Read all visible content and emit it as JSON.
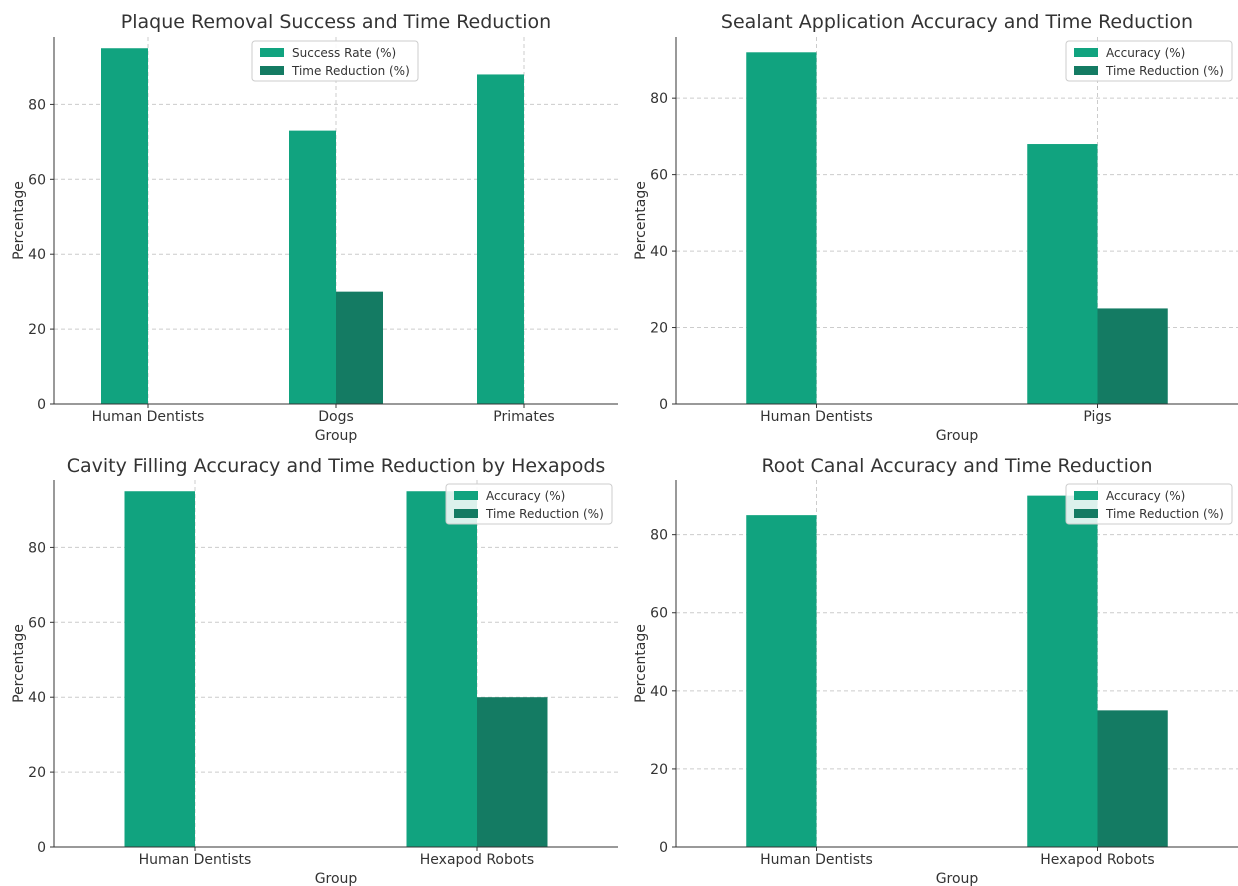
{
  "chart_data": [
    {
      "type": "bar",
      "title": "Plaque Removal Success and Time Reduction",
      "xlabel": "Group",
      "ylabel": "Percentage",
      "categories": [
        "Human Dentists",
        "Dogs",
        "Primates"
      ],
      "series": [
        {
          "name": "Success Rate (%)",
          "values": [
            95,
            73,
            88
          ],
          "color": "#11a37f"
        },
        {
          "name": "Time Reduction (%)",
          "values": [
            0,
            30,
            0
          ],
          "color": "#147b63"
        }
      ],
      "ylim": [
        0,
        98
      ],
      "yticks": [
        0,
        20,
        40,
        60,
        80
      ],
      "grid": true,
      "legend": "top-center"
    },
    {
      "type": "bar",
      "title": "Sealant Application Accuracy and Time Reduction",
      "xlabel": "Group",
      "ylabel": "Percentage",
      "categories": [
        "Human Dentists",
        "Pigs"
      ],
      "series": [
        {
          "name": "Accuracy (%)",
          "values": [
            92,
            68
          ],
          "color": "#11a37f"
        },
        {
          "name": "Time Reduction (%)",
          "values": [
            0,
            25
          ],
          "color": "#147b63"
        }
      ],
      "ylim": [
        0,
        96
      ],
      "yticks": [
        0,
        20,
        40,
        60,
        80
      ],
      "grid": true,
      "legend": "top-right"
    },
    {
      "type": "bar",
      "title": "Cavity Filling Accuracy and Time Reduction by Hexapods",
      "xlabel": "Group",
      "ylabel": "Percentage",
      "categories": [
        "Human Dentists",
        "Hexapod Robots"
      ],
      "series": [
        {
          "name": "Accuracy (%)",
          "values": [
            95,
            95
          ],
          "color": "#11a37f"
        },
        {
          "name": "Time Reduction (%)",
          "values": [
            0,
            40
          ],
          "color": "#147b63"
        }
      ],
      "ylim": [
        0,
        98
      ],
      "yticks": [
        0,
        20,
        40,
        60,
        80
      ],
      "grid": true,
      "legend": "top-right"
    },
    {
      "type": "bar",
      "title": "Root Canal Accuracy and Time Reduction",
      "xlabel": "Group",
      "ylabel": "Percentage",
      "categories": [
        "Human Dentists",
        "Hexapod Robots"
      ],
      "series": [
        {
          "name": "Accuracy (%)",
          "values": [
            85,
            90
          ],
          "color": "#11a37f"
        },
        {
          "name": "Time Reduction (%)",
          "values": [
            0,
            35
          ],
          "color": "#147b63"
        }
      ],
      "ylim": [
        0,
        94
      ],
      "yticks": [
        0,
        20,
        40,
        60,
        80
      ],
      "grid": true,
      "legend": "top-right"
    }
  ]
}
